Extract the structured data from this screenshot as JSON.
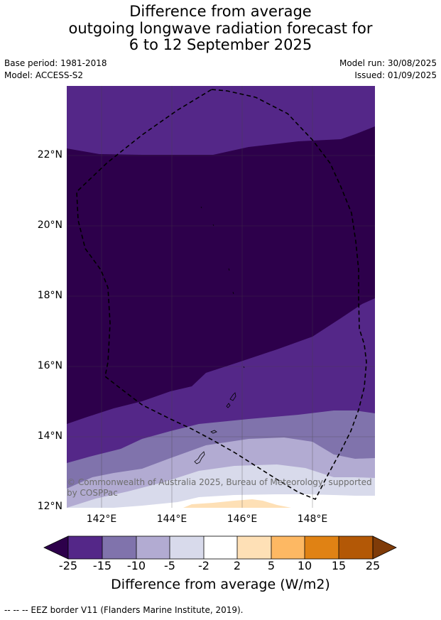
{
  "title_lines": [
    "Difference from average",
    "outgoing longwave radiation forecast for",
    "6 to 12 September 2025"
  ],
  "meta": {
    "base_period": "Base period: 1981-2018",
    "model": "Model: ACCESS-S2",
    "model_run": "Model run: 30/08/2025",
    "issued": "Issued: 01/09/2025"
  },
  "map": {
    "lon_range": [
      141,
      149.8
    ],
    "lat_range": [
      12,
      24
    ],
    "lat_ticks": [
      "22°N",
      "20°N",
      "18°N",
      "16°N",
      "14°N",
      "12°N"
    ],
    "lon_ticks": [
      "142°E",
      "144°E",
      "146°E",
      "148°E"
    ],
    "copyright": "© Commonwealth of Australia 2025, Bureau of Meteorology, supported by COSPPac",
    "colors": {
      "lt_minus25": "#2d004b",
      "m25_m15": "#542788",
      "m15_m10": "#8073ac",
      "m10_m5": "#b2abd2",
      "m5_m2": "#d8daeb",
      "m2_2": "#ffffff",
      "p2_5": "#fee0b6",
      "p5_10": "#fdb863",
      "p10_15": "#e08214",
      "p15_25": "#b35806",
      "gt_25": "#7f3b08"
    }
  },
  "colorbar": {
    "ticks": [
      "-25",
      "-15",
      "-10",
      "-5",
      "-2",
      "2",
      "5",
      "10",
      "15",
      "25"
    ],
    "label": "Difference from average (W/m2)"
  },
  "footnote": "--  --  -- EEZ border V11 (Flanders Marine Institute, 2019)."
}
